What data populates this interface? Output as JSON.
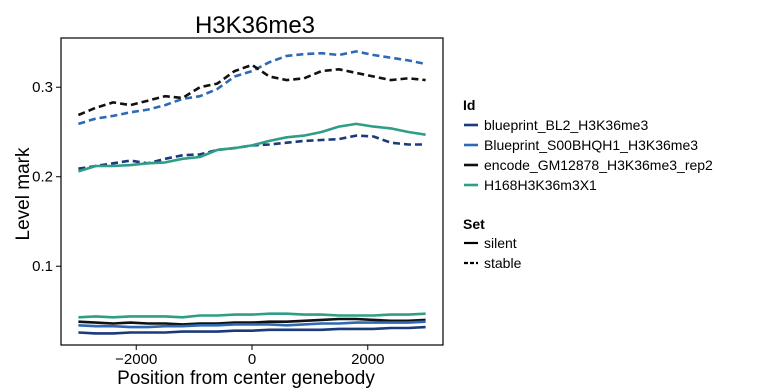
{
  "chart_data": {
    "type": "line",
    "title": "H3K36me3",
    "xlabel": "Position from center genebody",
    "ylabel": "Level mark",
    "xlim": [
      -3300,
      3300
    ],
    "ylim": [
      0.012,
      0.355
    ],
    "x_ticks": [
      -2000,
      0,
      2000
    ],
    "x_tick_labels": [
      "−2000",
      "0",
      "2000"
    ],
    "y_ticks": [
      0.1,
      0.2,
      0.3
    ],
    "y_tick_labels": [
      "0.1",
      "0.2",
      "0.3"
    ],
    "grid": false,
    "legend_position": "right",
    "legend": {
      "id_title": "Id",
      "set_title": "Set",
      "ids": [
        {
          "label": "blueprint_BL2_H3K36me3",
          "color": "#1b3a7a"
        },
        {
          "label": "Blueprint_S00BHQH1_H3K36me3",
          "color": "#2e6ab3"
        },
        {
          "label": "encode_GM12878_H3K36me3_rep2",
          "color": "#111111"
        },
        {
          "label": "H168H3K36m3X1",
          "color": "#2e9e86"
        }
      ],
      "sets": [
        {
          "label": "silent",
          "dash": "solid"
        },
        {
          "label": "stable",
          "dash": "dashed"
        }
      ]
    },
    "x": [
      -3000,
      -2700,
      -2400,
      -2100,
      -1800,
      -1500,
      -1200,
      -900,
      -600,
      -300,
      0,
      300,
      600,
      900,
      1200,
      1500,
      1800,
      2100,
      2400,
      2700,
      3000
    ],
    "series": [
      {
        "id": 0,
        "set": 1,
        "values": [
          0.209,
          0.212,
          0.215,
          0.218,
          0.215,
          0.22,
          0.224,
          0.225,
          0.23,
          0.232,
          0.235,
          0.236,
          0.238,
          0.24,
          0.241,
          0.242,
          0.246,
          0.245,
          0.238,
          0.236,
          0.236
        ]
      },
      {
        "id": 1,
        "set": 1,
        "values": [
          0.259,
          0.265,
          0.268,
          0.272,
          0.275,
          0.28,
          0.287,
          0.29,
          0.298,
          0.312,
          0.318,
          0.328,
          0.335,
          0.337,
          0.338,
          0.336,
          0.34,
          0.336,
          0.333,
          0.33,
          0.326
        ]
      },
      {
        "id": 2,
        "set": 1,
        "values": [
          0.269,
          0.277,
          0.283,
          0.28,
          0.285,
          0.29,
          0.288,
          0.3,
          0.304,
          0.318,
          0.325,
          0.312,
          0.308,
          0.31,
          0.318,
          0.32,
          0.316,
          0.312,
          0.308,
          0.31,
          0.308
        ]
      },
      {
        "id": 3,
        "set": 0,
        "values": [
          0.206,
          0.212,
          0.212,
          0.213,
          0.215,
          0.216,
          0.22,
          0.222,
          0.23,
          0.232,
          0.235,
          0.24,
          0.244,
          0.246,
          0.25,
          0.256,
          0.259,
          0.256,
          0.254,
          0.25,
          0.247
        ]
      },
      {
        "id": 3,
        "set": 0,
        "values": [
          0.043,
          0.044,
          0.043,
          0.044,
          0.044,
          0.044,
          0.043,
          0.045,
          0.045,
          0.046,
          0.046,
          0.047,
          0.047,
          0.046,
          0.046,
          0.045,
          0.045,
          0.045,
          0.046,
          0.046,
          0.047
        ]
      },
      {
        "id": 2,
        "set": 0,
        "values": [
          0.038,
          0.037,
          0.036,
          0.037,
          0.036,
          0.036,
          0.035,
          0.036,
          0.036,
          0.037,
          0.037,
          0.038,
          0.038,
          0.039,
          0.04,
          0.041,
          0.041,
          0.04,
          0.039,
          0.039,
          0.04
        ]
      },
      {
        "id": 1,
        "set": 0,
        "values": [
          0.034,
          0.033,
          0.033,
          0.032,
          0.032,
          0.033,
          0.033,
          0.034,
          0.034,
          0.035,
          0.035,
          0.035,
          0.034,
          0.035,
          0.036,
          0.036,
          0.037,
          0.037,
          0.037,
          0.037,
          0.038
        ]
      },
      {
        "id": 0,
        "set": 0,
        "values": [
          0.026,
          0.025,
          0.025,
          0.026,
          0.026,
          0.026,
          0.027,
          0.027,
          0.027,
          0.028,
          0.028,
          0.029,
          0.029,
          0.029,
          0.029,
          0.03,
          0.03,
          0.03,
          0.031,
          0.031,
          0.032
        ]
      }
    ]
  }
}
